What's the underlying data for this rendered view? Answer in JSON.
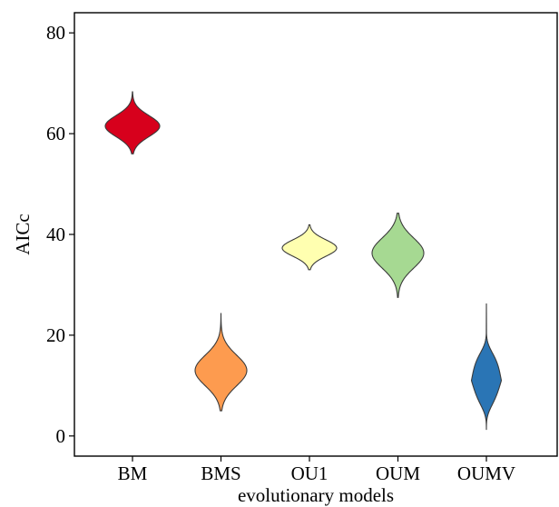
{
  "chart_data": {
    "type": "violin",
    "title": "",
    "xlabel": "evolutionary models",
    "ylabel": "AICc",
    "ylim": [
      -4,
      84
    ],
    "yticks": [
      0,
      20,
      40,
      60,
      80
    ],
    "grid": false,
    "legend": "none",
    "categories": [
      "BM",
      "BMS",
      "OU1",
      "OUM",
      "OUMV"
    ],
    "series": [
      {
        "category": "BM",
        "color": "#d7001c",
        "median": 61.5,
        "min": 56.0,
        "max": 68.3,
        "peak_density_width": 1.0
      },
      {
        "category": "BMS",
        "color": "#fd9b4f",
        "median": 13.0,
        "min": 5.0,
        "max": 24.3,
        "peak_density_width": 0.95
      },
      {
        "category": "OU1",
        "color": "#ffffb0",
        "median": 37.3,
        "min": 33.0,
        "max": 41.9,
        "peak_density_width": 1.0
      },
      {
        "category": "OUM",
        "color": "#a6d992",
        "median": 36.3,
        "min": 27.5,
        "max": 44.2,
        "peak_density_width": 0.95
      },
      {
        "category": "OUMV",
        "color": "#2a75b5",
        "median": 11.0,
        "min": 1.2,
        "max": 26.3,
        "peak_density_width": 0.55
      }
    ]
  }
}
